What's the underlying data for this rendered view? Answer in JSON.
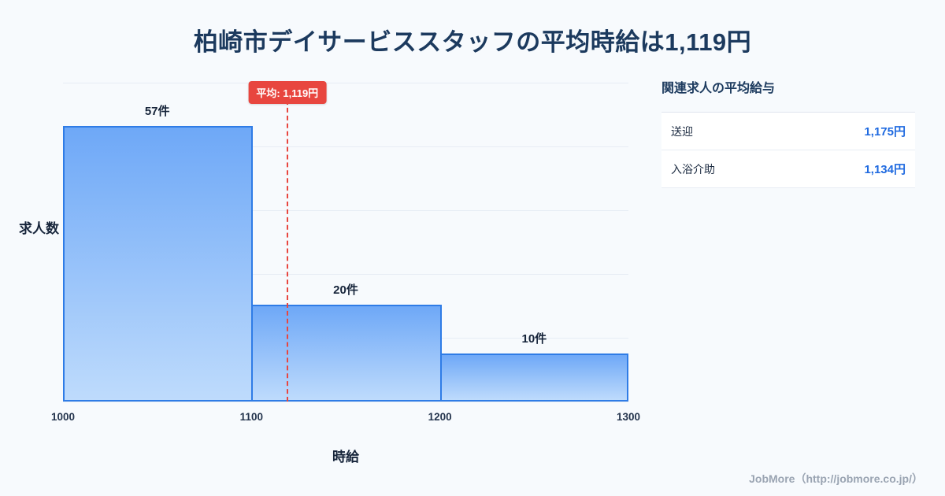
{
  "title": "柏崎市デイサービススタッフの平均時給は1,119円",
  "chart_data": {
    "type": "bar",
    "title": "柏崎市デイサービススタッフの平均時給は1,119円",
    "xlabel": "時給",
    "ylabel": "求人数",
    "bin_edges": [
      1000,
      1100,
      1200,
      1300
    ],
    "x_tick_labels": [
      "1000",
      "1100",
      "1200",
      "1300"
    ],
    "categories": [
      "1000-1100",
      "1100-1200",
      "1200-1300"
    ],
    "values": [
      57,
      20,
      10
    ],
    "bar_labels": [
      "57件",
      "20件",
      "10件"
    ],
    "average": 1119,
    "average_label": "平均: 1,119円",
    "ylim": [
      0,
      66
    ],
    "grid": true,
    "legend": "none",
    "colors": {
      "bar_fill_top": "#6ea8f7",
      "bar_fill_bottom": "#bedbfc",
      "bar_border": "#2f7ce6",
      "average_line": "#e8463f",
      "title_color": "#1c3a5e",
      "value_color": "#1f6ae0",
      "background": "#f7fafd"
    }
  },
  "panel": {
    "title": "関連求人の平均給与",
    "rows": [
      {
        "label": "送迎",
        "value": "1,175円"
      },
      {
        "label": "入浴介助",
        "value": "1,134円"
      }
    ]
  },
  "footer": {
    "text": "JobMore（http://jobmore.co.jp/）"
  }
}
